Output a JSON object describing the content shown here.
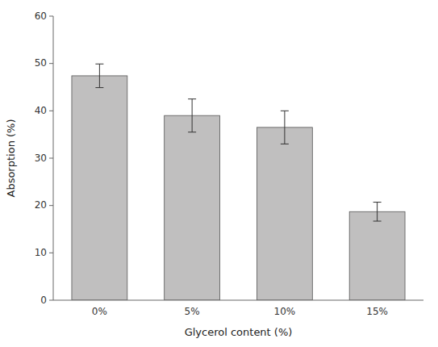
{
  "chart_data": {
    "type": "bar",
    "categories": [
      "0%",
      "5%",
      "10%",
      "15%"
    ],
    "values": [
      47.4,
      39.0,
      36.5,
      18.7
    ],
    "errors": [
      2.5,
      3.5,
      3.5,
      2.0
    ],
    "color": "#c0bfbf",
    "xlabel": "Glycerol content (%)",
    "ylabel": "Absorption (%)",
    "ylim": [
      0,
      60
    ],
    "yticks": [
      0,
      10,
      20,
      30,
      40,
      50,
      60
    ],
    "grid": false
  }
}
